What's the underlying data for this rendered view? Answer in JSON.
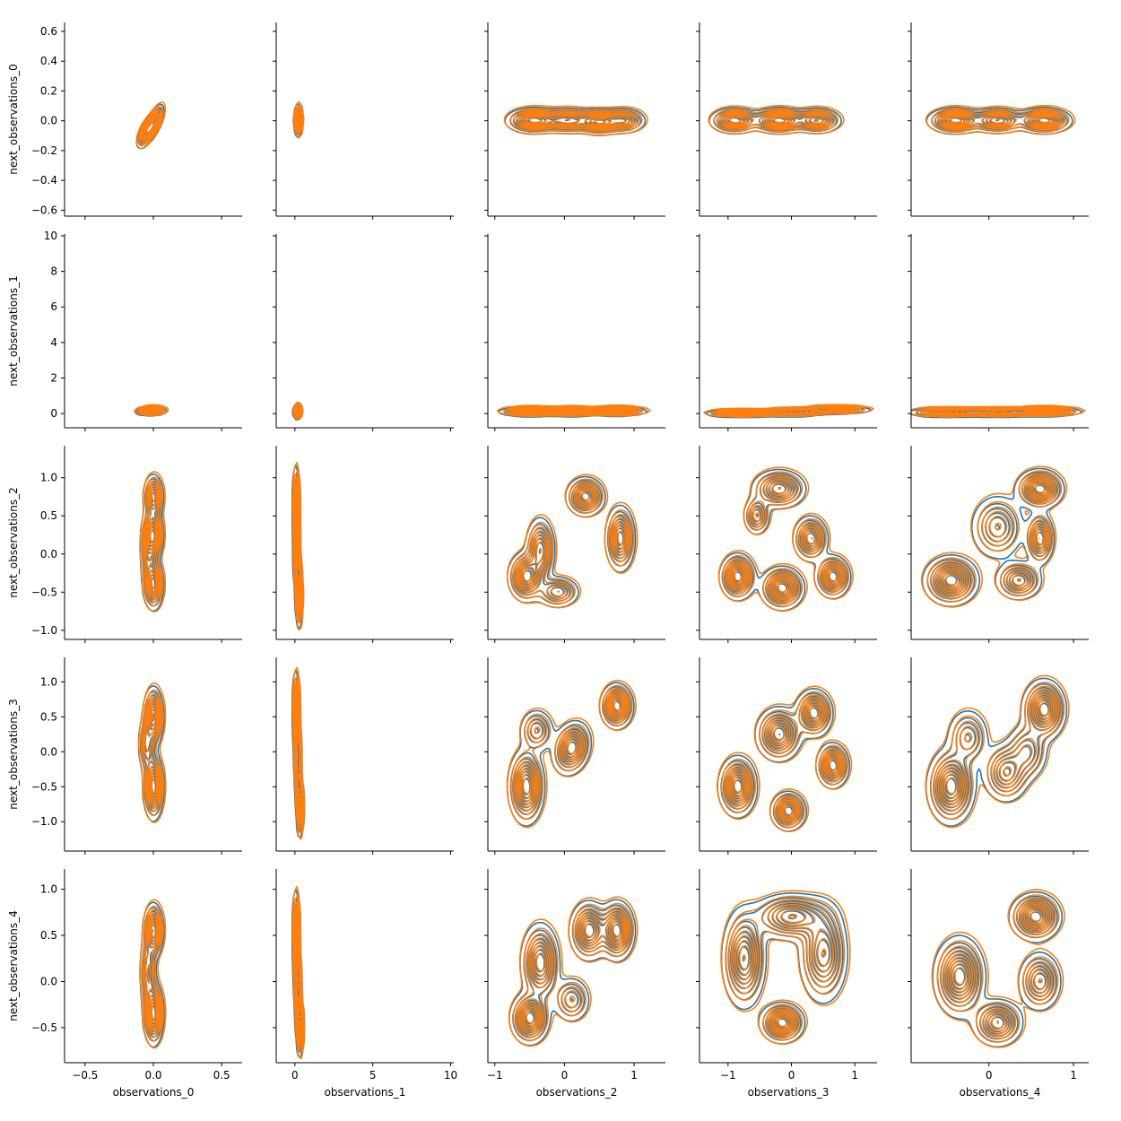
{
  "chart_data": {
    "type": "kde_contour_pairgrid",
    "x_vars": [
      "observations_0",
      "observations_1",
      "observations_2",
      "observations_3",
      "observations_4"
    ],
    "y_vars": [
      "next_observations_0",
      "next_observations_1",
      "next_observations_2",
      "next_observations_3",
      "next_observations_4"
    ],
    "x_axes": [
      {
        "label": "observations_0",
        "lim": [
          -0.65,
          0.65
        ],
        "ticks": [
          -0.5,
          0.0,
          0.5
        ],
        "tick_labels": [
          "−0.5",
          "0.0",
          "0.5"
        ]
      },
      {
        "label": "observations_1",
        "lim": [
          -1.2,
          10.2
        ],
        "ticks": [
          0,
          5,
          10
        ],
        "tick_labels": [
          "0",
          "5",
          "10"
        ]
      },
      {
        "label": "observations_2",
        "lim": [
          -1.1,
          1.45
        ],
        "ticks": [
          -1,
          0,
          1
        ],
        "tick_labels": [
          "−1",
          "0",
          "1"
        ]
      },
      {
        "label": "observations_3",
        "lim": [
          -1.45,
          1.35
        ],
        "ticks": [
          -1,
          0,
          1
        ],
        "tick_labels": [
          "−1",
          "0",
          "1"
        ]
      },
      {
        "label": "observations_4",
        "lim": [
          -0.92,
          1.18
        ],
        "ticks": [
          0,
          1
        ],
        "tick_labels": [
          "0",
          "1"
        ]
      }
    ],
    "y_axes": [
      {
        "label": "next_observations_0",
        "lim": [
          -0.64,
          0.66
        ],
        "ticks": [
          -0.6,
          -0.4,
          -0.2,
          0.0,
          0.2,
          0.4,
          0.6
        ],
        "tick_labels": [
          "−0.6",
          "−0.4",
          "−0.2",
          "0.0",
          "0.2",
          "0.4",
          "0.6"
        ]
      },
      {
        "label": "next_observations_1",
        "lim": [
          -0.8,
          10.1
        ],
        "ticks": [
          0,
          2,
          4,
          6,
          8,
          10
        ],
        "tick_labels": [
          "0",
          "2",
          "4",
          "6",
          "8",
          "10"
        ]
      },
      {
        "label": "next_observations_2",
        "lim": [
          -1.12,
          1.42
        ],
        "ticks": [
          -1.0,
          -0.5,
          0.0,
          0.5,
          1.0
        ],
        "tick_labels": [
          "−1.0",
          "−0.5",
          "0.0",
          "0.5",
          "1.0"
        ]
      },
      {
        "label": "next_observations_3",
        "lim": [
          -1.42,
          1.35
        ],
        "ticks": [
          -1.0,
          -0.5,
          0.0,
          0.5,
          1.0
        ],
        "tick_labels": [
          "−1.0",
          "−0.5",
          "0.0",
          "0.5",
          "1.0"
        ]
      },
      {
        "label": "next_observations_4",
        "lim": [
          -0.88,
          1.22
        ],
        "ticks": [
          -0.5,
          0.0,
          0.5,
          1.0
        ],
        "tick_labels": [
          "−0.5",
          "0.0",
          "0.5",
          "1.0"
        ]
      }
    ],
    "series_colors": [
      "#1f77b4",
      "#ff7f0e"
    ],
    "contour_levels": 9,
    "panels": [
      [
        {
          "modes": [
            [
              0.0,
              -0.02,
              0.035,
              0.06,
              0.7,
              1.0
            ],
            [
              -0.06,
              -0.08,
              0.03,
              0.05,
              0.6,
              0.8
            ]
          ]
        },
        {
          "modes": [
            [
              0.2,
              0.0,
              0.12,
              0.05,
              0.0,
              1.0
            ]
          ]
        },
        {
          "modes": [
            [
              -0.45,
              0.0,
              0.18,
              0.04,
              0.0,
              1.0
            ],
            [
              0.05,
              0.0,
              0.2,
              0.04,
              0.0,
              0.8
            ],
            [
              0.5,
              -0.01,
              0.15,
              0.04,
              0.0,
              0.9
            ],
            [
              0.85,
              0.0,
              0.15,
              0.04,
              0.0,
              0.7
            ]
          ]
        },
        {
          "modes": [
            [
              -0.9,
              0.0,
              0.18,
              0.04,
              0.0,
              0.9
            ],
            [
              -0.2,
              0.0,
              0.2,
              0.04,
              0.0,
              1.0
            ],
            [
              0.4,
              0.0,
              0.18,
              0.04,
              0.0,
              0.8
            ]
          ]
        },
        {
          "modes": [
            [
              -0.4,
              0.0,
              0.15,
              0.04,
              0.0,
              1.0
            ],
            [
              0.1,
              0.0,
              0.15,
              0.04,
              0.0,
              0.8
            ],
            [
              0.65,
              0.0,
              0.15,
              0.04,
              0.0,
              1.0
            ]
          ]
        }
      ],
      [
        {
          "modes": [
            [
              0.0,
              0.15,
              0.045,
              0.12,
              0.0,
              1.0
            ],
            [
              -0.06,
              0.1,
              0.04,
              0.1,
              0.0,
              0.6
            ]
          ]
        },
        {
          "modes": [
            [
              0.15,
              0.1,
              0.12,
              0.2,
              0.0,
              1.0
            ]
          ]
        },
        {
          "modes": [
            [
              -0.5,
              0.1,
              0.2,
              0.12,
              0.0,
              1.0
            ],
            [
              0.1,
              0.1,
              0.2,
              0.12,
              0.0,
              0.9
            ],
            [
              0.75,
              0.12,
              0.2,
              0.12,
              0.0,
              0.9
            ]
          ]
        },
        {
          "modes": [
            [
              -0.8,
              0.0,
              0.25,
              0.1,
              0.0,
              1.0
            ],
            [
              0.0,
              0.05,
              0.25,
              0.1,
              0.0,
              0.9
            ],
            [
              0.7,
              0.2,
              0.25,
              0.1,
              0.0,
              0.9
            ]
          ]
        },
        {
          "modes": [
            [
              -0.5,
              0.05,
              0.2,
              0.12,
              0.0,
              1.0
            ],
            [
              0.1,
              0.05,
              0.2,
              0.12,
              0.0,
              0.9
            ],
            [
              0.65,
              0.1,
              0.2,
              0.12,
              0.0,
              1.0
            ]
          ]
        }
      ],
      [
        {
          "modes": [
            [
              0.0,
              0.75,
              0.035,
              0.14,
              0.0,
              0.9
            ],
            [
              0.0,
              0.25,
              0.035,
              0.16,
              0.0,
              1.0
            ],
            [
              0.0,
              -0.4,
              0.035,
              0.16,
              0.0,
              1.0
            ],
            [
              -0.04,
              0.05,
              0.03,
              0.25,
              0.0,
              0.5
            ]
          ]
        },
        {
          "modes": [
            [
              0.05,
              0.6,
              0.1,
              0.25,
              0.0,
              1.0
            ],
            [
              0.1,
              0.0,
              0.1,
              0.25,
              0.0,
              0.8
            ],
            [
              0.25,
              -0.55,
              0.1,
              0.2,
              0.0,
              0.9
            ]
          ]
        },
        {
          "modes": [
            [
              -0.55,
              -0.3,
              0.12,
              0.15,
              0.0,
              1.0
            ],
            [
              -0.35,
              0.05,
              0.1,
              0.2,
              0.0,
              0.8
            ],
            [
              0.3,
              0.75,
              0.13,
              0.12,
              0.0,
              0.9
            ],
            [
              0.8,
              0.2,
              0.1,
              0.2,
              0.0,
              0.9
            ],
            [
              -0.1,
              -0.5,
              0.15,
              0.1,
              0.0,
              0.6
            ]
          ]
        },
        {
          "modes": [
            [
              -0.85,
              -0.3,
              0.13,
              0.14,
              0.0,
              1.0
            ],
            [
              -0.15,
              -0.45,
              0.16,
              0.13,
              0.0,
              1.0
            ],
            [
              0.65,
              -0.3,
              0.13,
              0.13,
              0.0,
              0.9
            ],
            [
              0.3,
              0.2,
              0.13,
              0.14,
              0.0,
              0.8
            ],
            [
              -0.2,
              0.85,
              0.2,
              0.12,
              0.0,
              0.8
            ],
            [
              -0.55,
              0.5,
              0.1,
              0.12,
              0.0,
              0.6
            ]
          ]
        },
        {
          "modes": [
            [
              -0.45,
              -0.35,
              0.15,
              0.15,
              0.0,
              1.0
            ],
            [
              0.6,
              0.85,
              0.13,
              0.12,
              0.0,
              1.0
            ],
            [
              0.6,
              0.2,
              0.08,
              0.16,
              0.0,
              0.8
            ],
            [
              0.35,
              -0.35,
              0.13,
              0.12,
              0.0,
              0.7
            ],
            [
              0.1,
              0.35,
              0.15,
              0.2,
              0.0,
              0.6
            ]
          ]
        }
      ],
      [
        {
          "modes": [
            [
              0.0,
              0.5,
              0.035,
              0.2,
              0.0,
              0.9
            ],
            [
              0.0,
              -0.5,
              0.035,
              0.22,
              0.0,
              1.0
            ],
            [
              -0.05,
              0.1,
              0.03,
              0.2,
              0.0,
              0.5
            ]
          ]
        },
        {
          "modes": [
            [
              0.05,
              0.6,
              0.1,
              0.25,
              0.0,
              1.0
            ],
            [
              0.15,
              -0.1,
              0.1,
              0.3,
              0.0,
              0.8
            ],
            [
              0.3,
              -0.8,
              0.1,
              0.2,
              0.0,
              0.9
            ]
          ]
        },
        {
          "modes": [
            [
              -0.55,
              -0.5,
              0.12,
              0.25,
              0.0,
              1.0
            ],
            [
              0.1,
              0.05,
              0.13,
              0.18,
              0.2,
              0.9
            ],
            [
              0.75,
              0.65,
              0.11,
              0.15,
              0.0,
              1.0
            ],
            [
              -0.4,
              0.3,
              0.12,
              0.15,
              0.0,
              0.5
            ]
          ]
        },
        {
          "modes": [
            [
              -0.85,
              -0.5,
              0.14,
              0.2,
              0.0,
              1.0
            ],
            [
              -0.2,
              0.25,
              0.17,
              0.18,
              0.0,
              0.9
            ],
            [
              0.35,
              0.55,
              0.14,
              0.16,
              0.0,
              0.9
            ],
            [
              0.65,
              -0.2,
              0.12,
              0.15,
              0.0,
              0.9
            ],
            [
              -0.05,
              -0.85,
              0.13,
              0.13,
              0.0,
              0.9
            ]
          ]
        },
        {
          "modes": [
            [
              -0.45,
              -0.5,
              0.13,
              0.25,
              0.0,
              1.0
            ],
            [
              0.65,
              0.6,
              0.12,
              0.2,
              0.0,
              1.0
            ],
            [
              0.2,
              -0.3,
              0.13,
              0.2,
              0.0,
              0.7
            ],
            [
              -0.25,
              0.2,
              0.12,
              0.2,
              0.0,
              0.5
            ],
            [
              0.45,
              0.0,
              0.12,
              0.2,
              0.0,
              0.5
            ]
          ]
        }
      ],
      [
        {
          "modes": [
            [
              0.0,
              0.55,
              0.035,
              0.14,
              0.0,
              0.9
            ],
            [
              0.0,
              -0.35,
              0.035,
              0.16,
              0.0,
              1.0
            ],
            [
              -0.04,
              0.1,
              0.03,
              0.2,
              0.0,
              0.5
            ]
          ]
        },
        {
          "modes": [
            [
              0.05,
              0.5,
              0.1,
              0.22,
              0.0,
              1.0
            ],
            [
              0.15,
              -0.05,
              0.1,
              0.22,
              0.0,
              0.8
            ],
            [
              0.3,
              -0.5,
              0.1,
              0.15,
              0.0,
              0.9
            ]
          ]
        },
        {
          "modes": [
            [
              -0.5,
              -0.4,
              0.13,
              0.13,
              0.0,
              1.0
            ],
            [
              -0.35,
              0.2,
              0.13,
              0.2,
              0.0,
              0.9
            ],
            [
              0.35,
              0.55,
              0.13,
              0.15,
              0.0,
              0.9
            ],
            [
              0.75,
              0.55,
              0.12,
              0.15,
              0.0,
              1.0
            ],
            [
              0.1,
              -0.2,
              0.13,
              0.12,
              0.0,
              0.5
            ]
          ]
        },
        {
          "modes": [
            [
              -0.15,
              -0.45,
              0.16,
              0.1,
              0.0,
              1.0
            ],
            [
              -0.75,
              0.25,
              0.16,
              0.25,
              0.0,
              0.9
            ],
            [
              0.5,
              0.3,
              0.18,
              0.25,
              0.0,
              0.8
            ],
            [
              0.0,
              0.7,
              0.3,
              0.12,
              0.0,
              0.8
            ]
          ]
        },
        {
          "modes": [
            [
              -0.35,
              0.05,
              0.14,
              0.2,
              0.0,
              1.0
            ],
            [
              0.55,
              0.7,
              0.14,
              0.12,
              0.0,
              1.0
            ],
            [
              0.1,
              -0.45,
              0.14,
              0.12,
              0.0,
              0.8
            ],
            [
              0.6,
              0.0,
              0.12,
              0.15,
              0.0,
              0.7
            ]
          ]
        }
      ]
    ]
  }
}
